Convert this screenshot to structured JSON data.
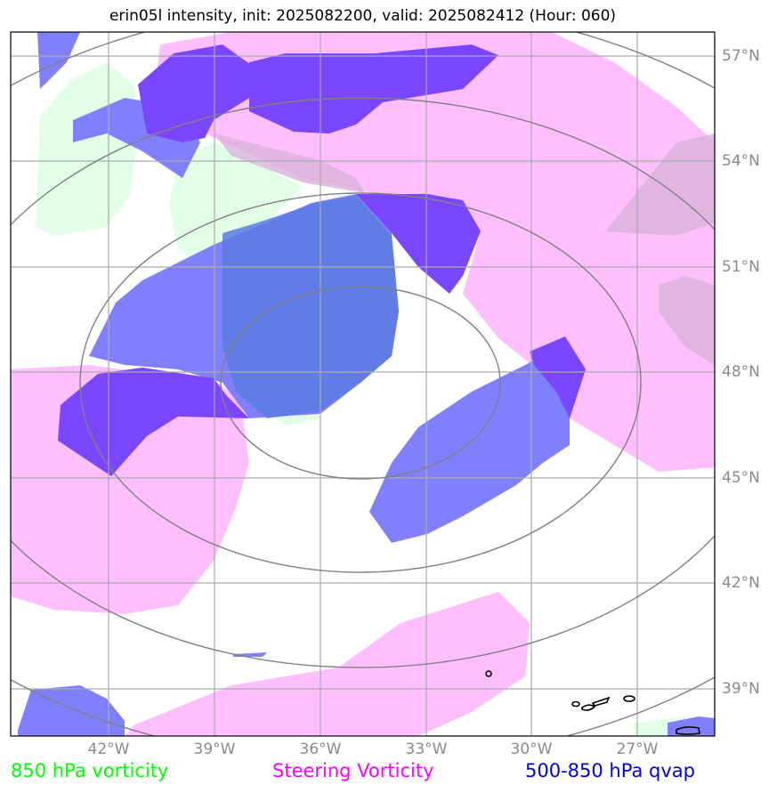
{
  "title": "erin05l intensity, init: 2025082200, valid: 2025082412 (Hour: 060)",
  "map": {
    "lon_ticks": [
      "42°W",
      "39°W",
      "36°W",
      "33°W",
      "30°W",
      "27°W"
    ],
    "lat_ticks": [
      "57°N",
      "54°N",
      "51°N",
      "48°N",
      "45°N",
      "42°N",
      "39°N"
    ],
    "layers": [
      {
        "name": "850 hPa vorticity",
        "color": "#00ff00"
      },
      {
        "name": "Steering Vorticity",
        "color": "#ff00ff"
      },
      {
        "name": "500-850 hPa qvap",
        "color": "#0000ff"
      }
    ],
    "range_ring_color": "#808080",
    "grid_color": "#aaaaaa"
  },
  "legend": {
    "vort850": "850 hPa vorticity",
    "steering": "Steering Vorticity",
    "qvap": "500-850 hPa qvap"
  }
}
